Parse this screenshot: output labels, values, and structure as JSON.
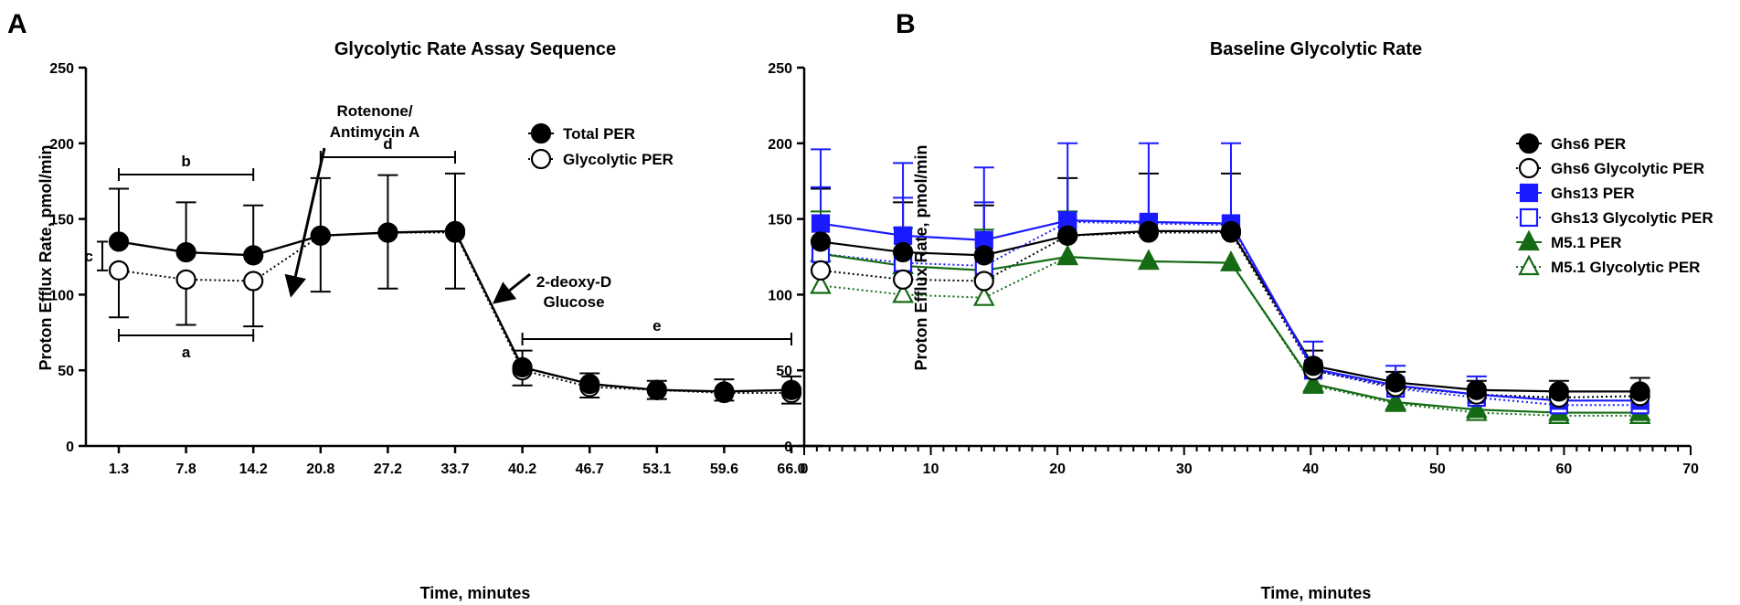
{
  "panels": [
    {
      "letter": "A",
      "chart_data": {
        "type": "line",
        "title": "Glycolytic Rate Assay Sequence",
        "xlabel": "Time, minutes",
        "ylabel": "Proton Efflux Rate, pmol/min",
        "ylim": [
          0,
          250
        ],
        "yticks": [
          0,
          50,
          100,
          150,
          200,
          250
        ],
        "categories": [
          "1.3",
          "7.8",
          "14.2",
          "20.8",
          "27.2",
          "33.7",
          "40.2",
          "46.7",
          "53.1",
          "59.6",
          "66.0"
        ],
        "series": [
          {
            "name": "Total PER",
            "color": "#000000",
            "marker": "circle",
            "filled": true,
            "dashed": false,
            "values": [
              135,
              128,
              126,
              139,
              141,
              142,
              52,
              41,
              37,
              36,
              37
            ],
            "err_up": [
              35,
              33,
              33,
              38,
              38,
              38,
              11,
              7,
              6,
              8,
              9
            ],
            "err_down": [
              0,
              0,
              0,
              37,
              37,
              38,
              12,
              9,
              6,
              6,
              9
            ]
          },
          {
            "name": "Glycolytic PER",
            "color": "#000000",
            "marker": "circle",
            "filled": false,
            "dashed": true,
            "values": [
              116,
              110,
              109,
              139,
              141,
              141,
              50,
              39,
              37,
              35,
              35
            ],
            "err_up": [
              0,
              0,
              0,
              0,
              0,
              0,
              0,
              0,
              0,
              0,
              0
            ],
            "err_down": [
              31,
              30,
              30,
              0,
              0,
              0,
              0,
              0,
              0,
              0,
              0
            ]
          }
        ],
        "annotations": [
          {
            "text": "Rotenone/",
            "line2": "Antimycin A"
          },
          {
            "text": "2-deoxy-D",
            "line2": "Glucose"
          }
        ],
        "brackets": [
          {
            "label": "b",
            "from": "1.3",
            "to": "14.2"
          },
          {
            "label": "a",
            "from": "1.3",
            "to": "14.2"
          },
          {
            "label": "d",
            "from": "20.8",
            "to": "33.7"
          },
          {
            "label": "e",
            "from": "40.2",
            "to": "66.0"
          },
          {
            "label": "c",
            "from_y": 116,
            "to_y": 135
          }
        ]
      }
    },
    {
      "letter": "B",
      "chart_data": {
        "type": "line",
        "title": "Baseline Glycolytic Rate",
        "xlabel": "Time, minutes",
        "ylabel": "Proton Efflux Rate, pmol/min",
        "xlim": [
          0,
          70
        ],
        "ylim": [
          0,
          250
        ],
        "xticks": [
          0,
          10,
          20,
          30,
          40,
          50,
          60,
          70
        ],
        "yticks": [
          0,
          50,
          100,
          150,
          200,
          250
        ],
        "x": [
          1.3,
          7.8,
          14.2,
          20.8,
          27.2,
          33.7,
          40.2,
          46.7,
          53.1,
          59.6,
          66.0
        ],
        "series": [
          {
            "name": "Ghs6 PER",
            "color": "#000000",
            "marker": "circle",
            "filled": true,
            "dashed": false,
            "values": [
              135,
              128,
              126,
              139,
              142,
              142,
              53,
              42,
              37,
              36,
              36
            ],
            "err_up": [
              35,
              33,
              33,
              38,
              38,
              38,
              10,
              7,
              6,
              7,
              9
            ]
          },
          {
            "name": "Ghs6 Glycolytic PER",
            "color": "#000000",
            "marker": "circle",
            "filled": false,
            "dashed": true,
            "values": [
              116,
              110,
              109,
              139,
              141,
              141,
              50,
              39,
              34,
              32,
              33
            ],
            "err_up": [
              0,
              0,
              0,
              0,
              0,
              0,
              0,
              0,
              0,
              0,
              0
            ]
          },
          {
            "name": "Ghs13 PER",
            "color": "#1a1aff",
            "marker": "square",
            "filled": true,
            "dashed": false,
            "values": [
              147,
              139,
              136,
              149,
              148,
              147,
              51,
              40,
              34,
              30,
              30
            ],
            "err_up": [
              49,
              48,
              48,
              51,
              52,
              53,
              18,
              13,
              12,
              6,
              6
            ]
          },
          {
            "name": "Ghs13 Glycolytic PER",
            "color": "#1a1aff",
            "marker": "square",
            "filled": false,
            "dashed": true,
            "values": [
              127,
              121,
              119,
              148,
              147,
              146,
              50,
              38,
              32,
              27,
              27
            ],
            "err_up": [
              44,
              43,
              42,
              0,
              0,
              0,
              0,
              0,
              0,
              0,
              0
            ]
          },
          {
            "name": "M5.1 PER",
            "color": "#146b14",
            "marker": "triangle",
            "filled": true,
            "dashed": false,
            "values": [
              127,
              119,
              116,
              125,
              122,
              121,
              41,
              29,
              24,
              22,
              22
            ],
            "err_up": [
              28,
              25,
              27,
              30,
              0,
              0,
              0,
              0,
              0,
              0,
              0
            ]
          },
          {
            "name": "M5.1 Glycolytic PER",
            "color": "#146b14",
            "marker": "triangle",
            "filled": false,
            "dashed": true,
            "values": [
              106,
              100,
              98,
              125,
              122,
              121,
              40,
              28,
              22,
              20,
              20
            ],
            "err_up": [
              0,
              0,
              0,
              0,
              0,
              0,
              0,
              0,
              0,
              0,
              0
            ]
          }
        ]
      }
    }
  ]
}
